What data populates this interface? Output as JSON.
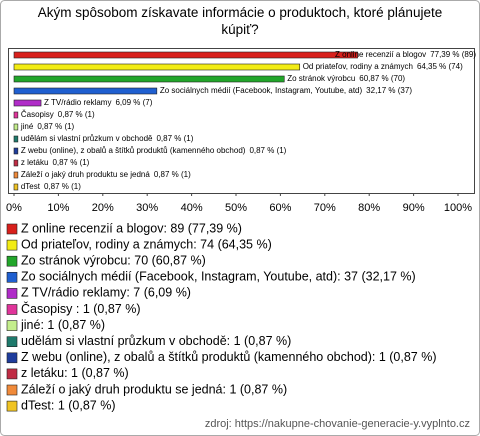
{
  "chart_data": {
    "type": "hbar",
    "title": "Akým spôsobom získavate informácie o produktoch, ktoré plánujete kúpiť?",
    "categories": [
      "Z online recenzií a blogov",
      "Od priateľov, rodiny a známych",
      "Zo stránok výrobcu",
      "Zo sociálnych médií (Facebook, Instagram, Youtube, atd)",
      "Z TV/rádio reklamy",
      "Časopisy",
      "jiné",
      "udělám si vlastní průzkum v obchodě",
      "Z webu (online), z obalů a štítků produktů (kamenného obchod)",
      "z letáku",
      "Záleží o jaký druh produktu se jedná",
      "dTest"
    ],
    "values": [
      77.39,
      64.35,
      60.87,
      32.17,
      6.09,
      0.87,
      0.87,
      0.87,
      0.87,
      0.87,
      0.87,
      0.87
    ],
    "value_labels": [
      "77,39 % (89)",
      "64,35 % (74)",
      "60,87 % (70)",
      "32,17 % (37)",
      "6,09 % (7)",
      "0,87 % (1)",
      "0,87 % (1)",
      "0,87 % (1)",
      "0,87 % (1)",
      "0,87 % (1)",
      "0,87 % (1)",
      "0,87 % (1)"
    ],
    "legend_labels": [
      "Z online recenzií a blogov: 89 (77,39 %)",
      "Od priateľov, rodiny a známych: 74 (64,35 %)",
      "Zo stránok výrobcu: 70 (60,87 %)",
      "Zo sociálnych médií (Facebook, Instagram, Youtube, atd): 37 (32,17 %)",
      "Z TV/rádio reklamy: 7 (6,09 %)",
      "Časopisy : 1 (0,87 %)",
      "jiné: 1 (0,87 %)",
      "udělám si vlastní průzkum v obchodě: 1 (0,87 %)",
      "Z webu (online), z obalů a štítků produktů (kamenného obchod): 1 (0,87 %)",
      "z letáku: 1 (0,87 %)",
      "Záleží o jaký druh produktu se jedná: 1 (0,87 %)",
      "dTest: 1 (0,87 %)"
    ],
    "colors": [
      "#d8201c",
      "#f2ec14",
      "#22a62a",
      "#1f5fd0",
      "#b02cc8",
      "#e0349a",
      "#c4ee8c",
      "#1e7a6c",
      "#1e3c9c",
      "#c02c44",
      "#f08a3a",
      "#f0c424"
    ],
    "xlim": [
      0,
      100
    ],
    "xticks": [
      {
        "value": 0,
        "label": "0%"
      },
      {
        "value": 10,
        "label": "10%"
      },
      {
        "value": 20,
        "label": "20%"
      },
      {
        "value": 30,
        "label": "30%"
      },
      {
        "value": 40,
        "label": "40%"
      },
      {
        "value": 50,
        "label": "50%"
      },
      {
        "value": 60,
        "label": "60%"
      },
      {
        "value": 70,
        "label": "70%"
      },
      {
        "value": 80,
        "label": "80%"
      },
      {
        "value": 90,
        "label": "90%"
      },
      {
        "value": 100,
        "label": "100%"
      }
    ],
    "source": "zdroj: https://nakupne-chovanie-generacie-y.vyplnto.cz"
  }
}
